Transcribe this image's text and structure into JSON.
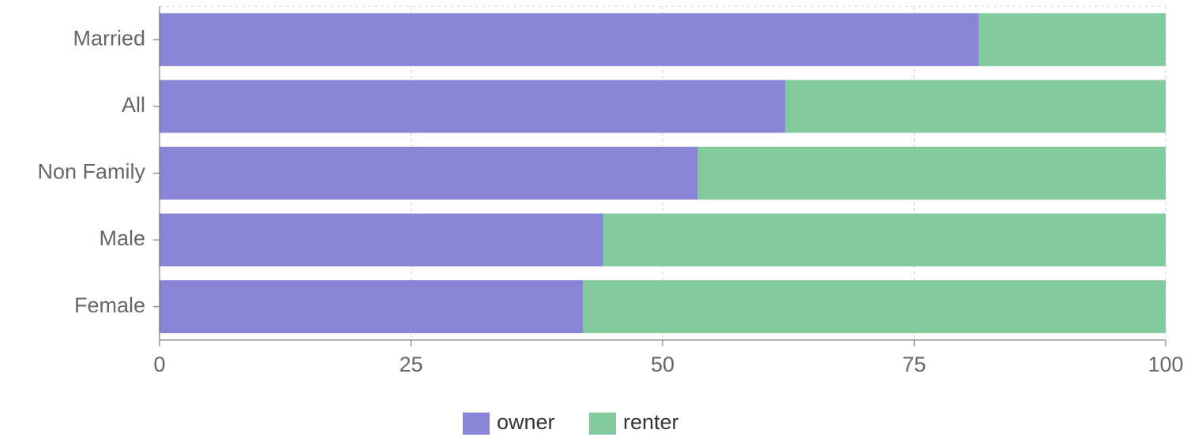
{
  "chart_data": {
    "type": "stacked-bar-horizontal",
    "categories": [
      "Married",
      "All",
      "Non Family",
      "Male",
      "Female"
    ],
    "series": [
      {
        "name": "owner",
        "color": "#8884d8",
        "values": [
          81.4,
          62.2,
          53.5,
          44.1,
          42.1
        ]
      },
      {
        "name": "renter",
        "color": "#82ca9d",
        "values": [
          18.6,
          37.8,
          46.5,
          55.9,
          57.9
        ]
      }
    ],
    "xlim": [
      0,
      100
    ],
    "xticks": [
      0,
      25,
      50,
      75,
      100
    ],
    "grid": true,
    "legend": "bottom"
  }
}
